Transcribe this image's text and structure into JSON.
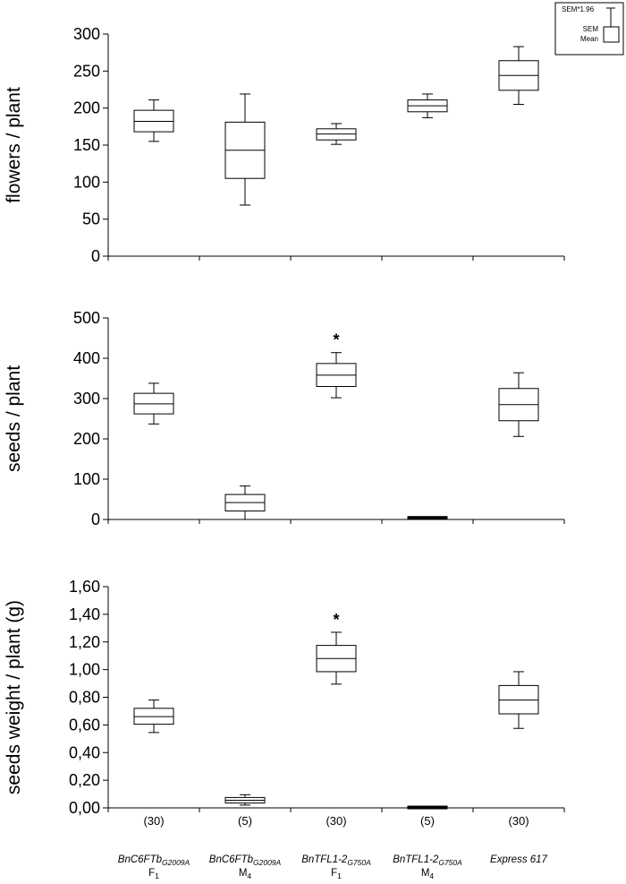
{
  "legend": {
    "items": [
      "SEM*1.96",
      "SEM",
      "Mean"
    ]
  },
  "groups": [
    {
      "name": "BnC6FTb",
      "subscript": "G2009A",
      "generation": "F",
      "gen_sub": "1",
      "n_label": "(30)"
    },
    {
      "name": "BnC6FTb",
      "subscript": "G2009A",
      "generation": "M",
      "gen_sub": "4",
      "n_label": "(5)"
    },
    {
      "name": "BnTFL1-2",
      "subscript": "G750A",
      "generation": "F",
      "gen_sub": "1",
      "n_label": "(30)"
    },
    {
      "name": "BnTFL1-2",
      "subscript": "G750A",
      "generation": "M",
      "gen_sub": "4",
      "n_label": "(5)"
    },
    {
      "name": "Express 617",
      "subscript": "",
      "generation": "",
      "gen_sub": "",
      "n_label": "(30)"
    }
  ],
  "chart_data": [
    {
      "type": "box",
      "ylabel": "flowers / plant",
      "ylim": [
        0,
        300
      ],
      "yticks": [
        0,
        50,
        100,
        150,
        200,
        250,
        300
      ],
      "ytick_labels": [
        "0",
        "50",
        "100",
        "150",
        "200",
        "250",
        "300"
      ],
      "boxes": [
        {
          "mean": 182,
          "sem_low": 168,
          "sem_high": 197,
          "ci_low": 155,
          "ci_high": 211,
          "marker": ""
        },
        {
          "mean": 143,
          "sem_low": 105,
          "sem_high": 181,
          "ci_low": 69,
          "ci_high": 219,
          "marker": ""
        },
        {
          "mean": 165,
          "sem_low": 157,
          "sem_high": 172,
          "ci_low": 151,
          "ci_high": 179,
          "marker": ""
        },
        {
          "mean": 203,
          "sem_low": 195,
          "sem_high": 211,
          "ci_low": 187,
          "ci_high": 219,
          "marker": ""
        },
        {
          "mean": 244,
          "sem_low": 224,
          "sem_high": 264,
          "ci_low": 205,
          "ci_high": 283,
          "marker": ""
        }
      ]
    },
    {
      "type": "box",
      "ylabel": "seeds / plant",
      "ylim": [
        0,
        500
      ],
      "yticks": [
        0,
        100,
        200,
        300,
        400,
        500
      ],
      "ytick_labels": [
        "0",
        "100",
        "200",
        "300",
        "400",
        "500"
      ],
      "boxes": [
        {
          "mean": 287,
          "sem_low": 262,
          "sem_high": 313,
          "ci_low": 237,
          "ci_high": 338,
          "marker": ""
        },
        {
          "mean": 42,
          "sem_low": 21,
          "sem_high": 62,
          "ci_low": 0,
          "ci_high": 83,
          "marker": ""
        },
        {
          "mean": 358,
          "sem_low": 330,
          "sem_high": 387,
          "ci_low": 302,
          "ci_high": 414,
          "marker": "*"
        },
        {
          "mean": 4,
          "sem_low": 3,
          "sem_high": 5,
          "ci_low": 2,
          "ci_high": 6,
          "marker": ""
        },
        {
          "mean": 285,
          "sem_low": 245,
          "sem_high": 325,
          "ci_low": 206,
          "ci_high": 364,
          "marker": ""
        }
      ]
    },
    {
      "type": "box",
      "ylabel": "seeds weight / plant (g)",
      "ylim": [
        0,
        1.6
      ],
      "yticks": [
        0,
        0.2,
        0.4,
        0.6,
        0.8,
        1.0,
        1.2,
        1.4,
        1.6
      ],
      "ytick_labels": [
        "0,00",
        "0,20",
        "0,40",
        "0,60",
        "0,80",
        "1,00",
        "1,20",
        "1,40",
        "1,60"
      ],
      "boxes": [
        {
          "mean": 0.66,
          "sem_low": 0.605,
          "sem_high": 0.72,
          "ci_low": 0.545,
          "ci_high": 0.78,
          "marker": ""
        },
        {
          "mean": 0.055,
          "sem_low": 0.035,
          "sem_high": 0.075,
          "ci_low": 0.02,
          "ci_high": 0.095,
          "marker": ""
        },
        {
          "mean": 1.08,
          "sem_low": 0.985,
          "sem_high": 1.175,
          "ci_low": 0.895,
          "ci_high": 1.27,
          "marker": "*"
        },
        {
          "mean": 0.003,
          "sem_low": 0.002,
          "sem_high": 0.004,
          "ci_low": 0.001,
          "ci_high": 0.005,
          "marker": ""
        },
        {
          "mean": 0.78,
          "sem_low": 0.68,
          "sem_high": 0.885,
          "ci_low": 0.575,
          "ci_high": 0.985,
          "marker": ""
        }
      ]
    }
  ]
}
